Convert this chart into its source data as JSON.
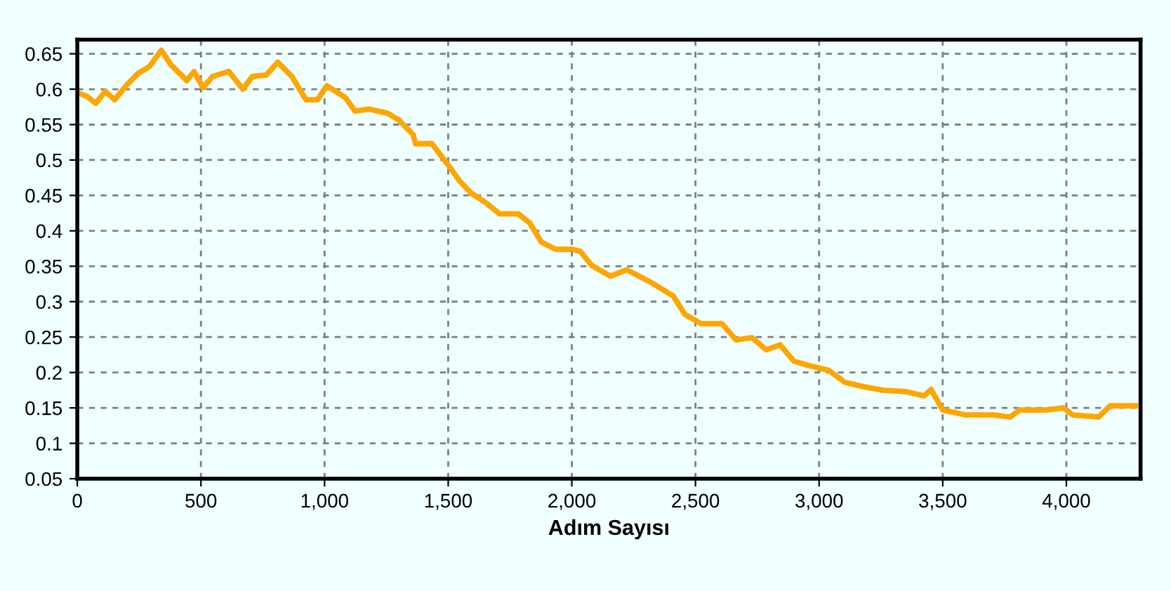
{
  "chart_data": {
    "type": "line",
    "xlabel": "Adım Sayısı",
    "x": [
      0,
      38,
      75,
      113,
      151,
      198,
      245,
      292,
      340,
      377,
      415,
      443,
      472,
      509,
      547,
      613,
      670,
      708,
      764,
      811,
      868,
      925,
      972,
      1009,
      1085,
      1123,
      1179,
      1255,
      1302,
      1358,
      1368,
      1434,
      1500,
      1547,
      1594,
      1651,
      1708,
      1783,
      1830,
      1877,
      1934,
      2000,
      2034,
      2081,
      2156,
      2222,
      2316,
      2410,
      2457,
      2523,
      2607,
      2664,
      2729,
      2786,
      2842,
      2898,
      2955,
      3039,
      3105,
      3180,
      3256,
      3350,
      3425,
      3453,
      3500,
      3594,
      3707,
      3773,
      3810,
      3914,
      3989,
      4026,
      4130,
      4177,
      4280
    ],
    "series": [
      {
        "color": "#ffa500",
        "values": [
          0.595,
          0.59,
          0.58,
          0.597,
          0.585,
          0.605,
          0.622,
          0.632,
          0.655,
          0.635,
          0.622,
          0.612,
          0.625,
          0.602,
          0.618,
          0.625,
          0.6,
          0.618,
          0.62,
          0.638,
          0.618,
          0.585,
          0.585,
          0.605,
          0.588,
          0.569,
          0.572,
          0.566,
          0.556,
          0.536,
          0.523,
          0.523,
          0.493,
          0.47,
          0.453,
          0.44,
          0.424,
          0.424,
          0.411,
          0.384,
          0.374,
          0.374,
          0.371,
          0.351,
          0.336,
          0.345,
          0.328,
          0.308,
          0.282,
          0.269,
          0.269,
          0.246,
          0.249,
          0.232,
          0.239,
          0.216,
          0.21,
          0.203,
          0.186,
          0.18,
          0.175,
          0.173,
          0.167,
          0.176,
          0.147,
          0.14,
          0.14,
          0.137,
          0.147,
          0.147,
          0.15,
          0.14,
          0.137,
          0.153,
          0.153
        ]
      }
    ],
    "xlim": [
      0,
      4300
    ],
    "xticks": [
      0,
      500,
      {
        "value": 1000,
        "label": "1,000"
      },
      {
        "value": 1500,
        "label": "1,500"
      },
      {
        "value": 2000,
        "label": "2,000"
      },
      {
        "value": 2500,
        "label": "2,500"
      },
      {
        "value": 3000,
        "label": "3,000"
      },
      {
        "value": 3500,
        "label": "3,500"
      },
      {
        "value": 4000,
        "label": "4,000"
      }
    ],
    "ylim": [
      0.05,
      0.67
    ],
    "yticks": [
      0.05,
      0.1,
      0.15,
      0.2,
      0.25,
      0.3,
      0.35,
      0.4,
      0.45,
      0.5,
      0.55,
      0.6,
      0.65
    ],
    "grid": true,
    "line_style": "solid",
    "marker": "none"
  }
}
